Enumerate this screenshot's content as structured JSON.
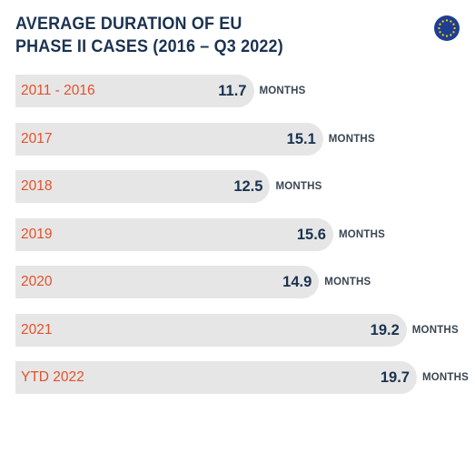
{
  "chart_data": {
    "type": "bar",
    "title": "AVERAGE DURATION OF EU PHASE II CASES (2016 – Q3 2022)",
    "title_lines": [
      "AVERAGE DURATION OF EU",
      "PHASE II CASES (2016 – Q3 2022)"
    ],
    "categories": [
      "2011 - 2016",
      "2017",
      "2018",
      "2019",
      "2020",
      "2021",
      "YTD 2022"
    ],
    "values": [
      11.7,
      15.1,
      12.5,
      15.6,
      14.9,
      19.2,
      19.7
    ],
    "value_labels": [
      "11.7",
      "15.1",
      "12.5",
      "15.6",
      "14.9",
      "19.2",
      "19.7"
    ],
    "unit_label": "MONTHS",
    "orientation": "horizontal",
    "xlim": [
      0,
      19.7
    ],
    "grid": false
  },
  "colors": {
    "title": "#1b3350",
    "category": "#e4512b",
    "value": "#1b3350",
    "unit": "#3a4654",
    "bar": "#e6e6e6",
    "flag_bg": "#1d3e93",
    "flag_stars": "#f5d000"
  },
  "icons": {
    "flag": "eu-flag-icon"
  }
}
